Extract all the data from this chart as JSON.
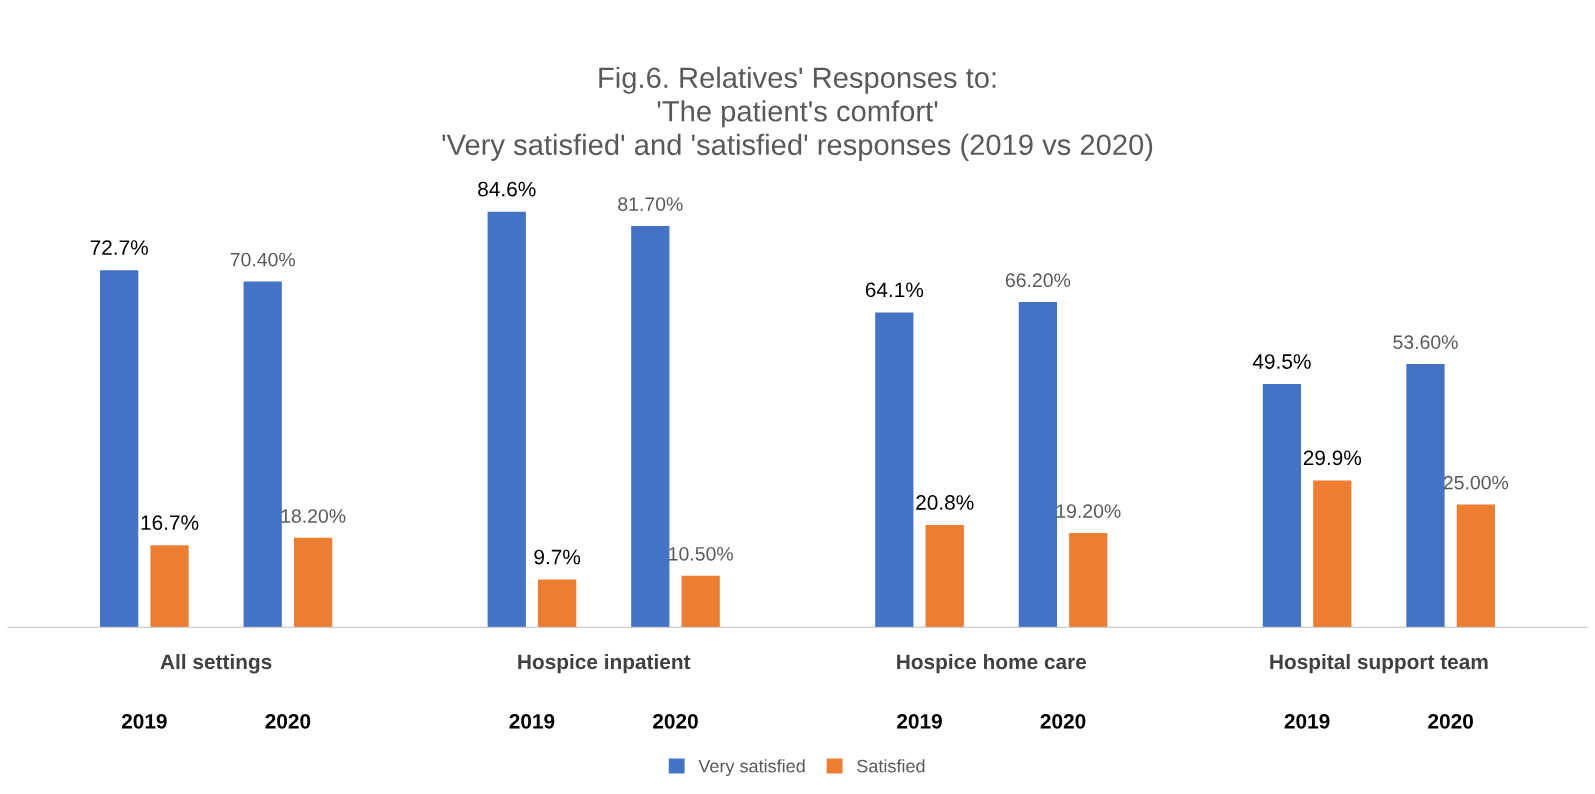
{
  "chart_data": {
    "type": "bar",
    "title": "Fig.6. Relatives' Responses to:\n'The patient's comfort'\n'Very satisfied' and 'satisfied' responses (2019 vs 2020)",
    "categories": [
      "2019",
      "2020",
      "2019",
      "2020",
      "2019",
      "2020",
      "2019",
      "2020"
    ],
    "annotations": [
      "All settings",
      "Hospice inpatient",
      "Hospice home care",
      "Hospital support team"
    ],
    "series": [
      {
        "name": "Very satisfied",
        "color": "#4472c4",
        "values": [
          72.7,
          70.4,
          84.6,
          81.7,
          64.1,
          66.2,
          49.5,
          53.6
        ],
        "value_labels": [
          "72.7%",
          "70.40%",
          "84.6%",
          "81.70%",
          "64.1%",
          "66.20%",
          "49.5%",
          "53.60%"
        ]
      },
      {
        "name": "Satisfied",
        "color": "#ed7d31",
        "values": [
          16.7,
          18.2,
          9.7,
          10.5,
          20.8,
          19.2,
          29.9,
          25.0
        ],
        "value_labels": [
          "16.7%",
          "18.20%",
          "9.7%",
          "10.50%",
          "20.8%",
          "19.20%",
          "29.9%",
          "25.00%"
        ]
      }
    ],
    "legend": "bottom",
    "grid": false
  }
}
